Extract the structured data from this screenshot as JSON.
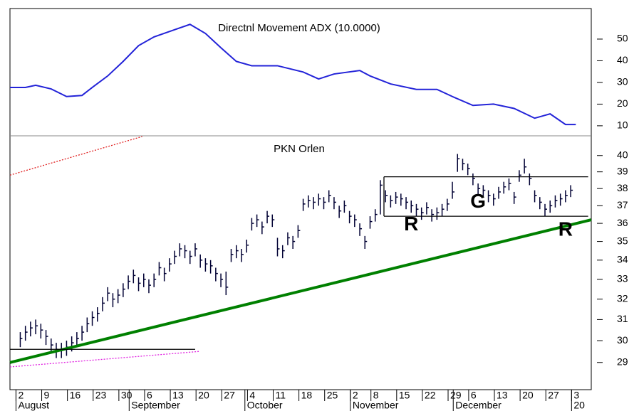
{
  "chart_data": [
    {
      "type": "line",
      "title": "Directnl Movement ADX (10.0000)",
      "color": "#2323d8",
      "x": [
        -2,
        1,
        3,
        6,
        9,
        12,
        14,
        17,
        20,
        23,
        26,
        29,
        33,
        36,
        39,
        42,
        45,
        50,
        55,
        58,
        61,
        66,
        68,
        72,
        77,
        81,
        84,
        88,
        92,
        96,
        100,
        103,
        106,
        108
      ],
      "values": [
        27.7,
        27.7,
        28.7,
        27,
        23.5,
        24,
        27.7,
        33,
        39.7,
        47,
        51,
        53.5,
        56.8,
        52.6,
        46,
        39.7,
        37.7,
        37.7,
        34.8,
        31.6,
        33.9,
        35.5,
        33,
        29.3,
        26.8,
        26.8,
        23.5,
        19.4,
        20,
        18,
        13.5,
        15.5,
        10.6,
        10.6
      ],
      "xlim": [
        -2,
        111
      ],
      "ylim": [
        5.7,
        64.1
      ],
      "yticks": [
        10,
        20,
        30,
        40,
        50
      ]
    },
    {
      "type": "hlc",
      "title": "PKN Orlen",
      "color": "#000033",
      "log_scale": true,
      "high": [
        30.4,
        30.7,
        30.9,
        31.0,
        30.8,
        30.5,
        30.1,
        29.9,
        29.9,
        30.0,
        30.2,
        30.4,
        30.7,
        31.1,
        31.4,
        31.6,
        32.1,
        32.6,
        32.3,
        32.5,
        32.8,
        33.2,
        33.5,
        33.1,
        33.3,
        33.0,
        33.3,
        33.9,
        33.6,
        34.1,
        34.5,
        34.9,
        34.8,
        34.5,
        34.9,
        34.3,
        34.1,
        34.0,
        33.6,
        33.3,
        33.4,
        34.6,
        34.8,
        34.6,
        35.1,
        36.3,
        36.5,
        36.1,
        36.7,
        36.5,
        35.2,
        34.8,
        35.5,
        35.3,
        35.9,
        37.4,
        37.6,
        37.5,
        37.7,
        37.5,
        37.9,
        37.5,
        37.0,
        37.3,
        36.7,
        36.5,
        36.0,
        35.3,
        36.4,
        36.8,
        38.5,
        37.9,
        37.6,
        37.8,
        37.7,
        37.5,
        37.3,
        37.1,
        36.9,
        37.2,
        36.8,
        36.9,
        37.1,
        37.4,
        38.4,
        40.1,
        39.8,
        39.5,
        38.9,
        38.3,
        38.2,
        37.9,
        37.7,
        38.1,
        38.4,
        38.6,
        37.8,
        39.1,
        39.8,
        38.9,
        37.9,
        37.5,
        37.1,
        37.3,
        37.6,
        37.7,
        37.9,
        38.2
      ],
      "low": [
        29.7,
        30.0,
        30.2,
        30.3,
        30.1,
        29.8,
        29.4,
        29.2,
        29.2,
        29.3,
        29.5,
        29.7,
        30.0,
        30.4,
        30.7,
        30.9,
        31.4,
        31.9,
        31.6,
        31.8,
        32.1,
        32.5,
        32.8,
        32.4,
        32.6,
        32.3,
        32.6,
        33.2,
        32.9,
        33.4,
        33.8,
        34.2,
        34.1,
        33.8,
        34.2,
        33.6,
        33.4,
        33.3,
        32.9,
        32.6,
        32.2,
        33.9,
        34.1,
        33.9,
        34.4,
        35.6,
        35.8,
        35.4,
        36.0,
        35.8,
        34.2,
        34.1,
        34.8,
        34.6,
        35.2,
        36.7,
        36.9,
        36.8,
        37.0,
        36.8,
        37.2,
        36.8,
        36.3,
        36.6,
        36.0,
        35.8,
        35.3,
        34.6,
        35.7,
        36.1,
        36.5,
        37.2,
        36.9,
        37.1,
        37.0,
        36.8,
        36.6,
        36.4,
        36.2,
        36.5,
        36.1,
        36.2,
        36.4,
        36.7,
        37.4,
        39.0,
        39.1,
        38.8,
        38.2,
        37.6,
        37.5,
        37.2,
        37.0,
        37.4,
        37.7,
        37.9,
        37.1,
        38.4,
        38.9,
        38.2,
        37.2,
        36.8,
        36.4,
        36.6,
        36.9,
        37.0,
        37.2,
        37.5
      ],
      "close": [
        30.1,
        30.4,
        30.6,
        30.7,
        30.5,
        30.2,
        29.8,
        29.6,
        29.6,
        29.7,
        29.9,
        30.1,
        30.4,
        30.8,
        31.1,
        31.3,
        31.8,
        32.3,
        32.0,
        32.2,
        32.5,
        32.9,
        33.2,
        32.8,
        33.0,
        32.7,
        33.0,
        33.6,
        33.3,
        33.8,
        34.2,
        34.6,
        34.5,
        34.2,
        34.6,
        34.0,
        33.8,
        33.7,
        33.3,
        33.0,
        32.6,
        34.3,
        34.5,
        34.3,
        34.8,
        36.0,
        36.2,
        35.8,
        36.4,
        36.2,
        34.6,
        34.5,
        35.2,
        35.0,
        35.6,
        37.1,
        37.3,
        37.2,
        37.4,
        37.2,
        37.6,
        37.2,
        36.7,
        37.0,
        36.4,
        36.2,
        35.7,
        35.0,
        36.1,
        36.5,
        38.2,
        37.6,
        37.3,
        37.5,
        37.4,
        37.2,
        37.0,
        36.8,
        36.6,
        36.9,
        36.5,
        36.6,
        36.8,
        37.1,
        37.8,
        39.8,
        39.5,
        39.2,
        38.6,
        38.0,
        37.9,
        37.6,
        37.4,
        37.8,
        38.1,
        38.3,
        37.5,
        38.8,
        39.3,
        38.6,
        37.6,
        37.2,
        36.8,
        37.0,
        37.3,
        37.4,
        37.6,
        37.9
      ],
      "xlim": [
        -2,
        111
      ],
      "ylim": [
        27.8,
        41.2
      ],
      "yticks": [
        29,
        30,
        31,
        32,
        33,
        34,
        35,
        36,
        37,
        38,
        39,
        40
      ],
      "xticks": [
        {
          "value": 0,
          "label": "2"
        },
        {
          "value": 5,
          "label": "9"
        },
        {
          "value": 10,
          "label": "16"
        },
        {
          "value": 15,
          "label": "23"
        },
        {
          "value": 20,
          "label": "30"
        },
        {
          "value": 25,
          "label": "6"
        },
        {
          "value": 30,
          "label": "13"
        },
        {
          "value": 35,
          "label": "20"
        },
        {
          "value": 40,
          "label": "27"
        },
        {
          "value": 45,
          "label": "4"
        },
        {
          "value": 50,
          "label": "11"
        },
        {
          "value": 55,
          "label": "18"
        },
        {
          "value": 60,
          "label": "25"
        },
        {
          "value": 65,
          "label": "2"
        },
        {
          "value": 69,
          "label": "8"
        },
        {
          "value": 74,
          "label": "15"
        },
        {
          "value": 79,
          "label": "22"
        },
        {
          "value": 84,
          "label": "29"
        },
        {
          "value": 88,
          "label": "6"
        },
        {
          "value": 93,
          "label": "13"
        },
        {
          "value": 98,
          "label": "20"
        },
        {
          "value": 103,
          "label": "27"
        },
        {
          "value": 108,
          "label": "3"
        }
      ],
      "months": [
        {
          "label": "August",
          "x": 0
        },
        {
          "label": "September",
          "x": 22
        },
        {
          "label": "October",
          "x": 44.5
        },
        {
          "label": "November",
          "x": 65
        },
        {
          "label": "December",
          "x": 85
        },
        {
          "label": "20",
          "x": 108
        }
      ],
      "lines": [
        {
          "color": "#008000",
          "x": [
            -2,
            111
          ],
          "y": [
            29.0,
            36.2
          ]
        },
        {
          "color": "#000000",
          "x": [
            -2,
            34
          ],
          "y": [
            29.6,
            29.6
          ]
        },
        {
          "color": "#000000",
          "x": [
            70.7,
            110.4
          ],
          "y": [
            38.7,
            38.7
          ]
        },
        {
          "color": "#000000",
          "x": [
            70.7,
            110.4
          ],
          "y": [
            36.4,
            36.4
          ]
        },
        {
          "color": "#000000",
          "x": [
            70.7,
            70.7
          ],
          "y": [
            36.4,
            38.7
          ]
        },
        {
          "color": "#e02020",
          "dashed": true,
          "x": [
            -2,
            23.7
          ],
          "y": [
            38.8,
            41.2
          ]
        },
        {
          "color": "#e020e0",
          "dashed": true,
          "x": [
            -2,
            34.7
          ],
          "y": [
            28.8,
            29.5
          ]
        }
      ],
      "annotations": [
        {
          "text": "R",
          "x": 76,
          "y": 35.9
        },
        {
          "text": "G",
          "x": 89,
          "y": 37.2
        },
        {
          "text": "R",
          "x": 106,
          "y": 35.6
        }
      ]
    }
  ]
}
